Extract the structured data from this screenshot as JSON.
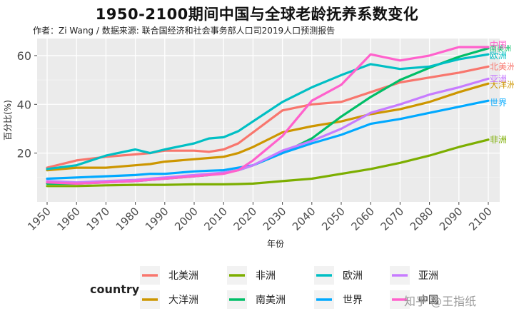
{
  "title": "1950-2100期间中国与全球老龄抚养系数变化",
  "subtitle": "作者：Zi Wang / 数据来源: 联合国经济和社会事务部人口司2019人口预测报告",
  "watermark": "知乎 @王指纸",
  "chart_data": {
    "type": "line",
    "title": "1950-2100期间中国与全球老龄抚养系数变化",
    "xlabel": "年份",
    "ylabel": "百分比(%)",
    "xlim": [
      1950,
      2100
    ],
    "ylim": [
      0,
      67
    ],
    "xticks": [
      1950,
      1960,
      1970,
      1980,
      1990,
      2000,
      2010,
      2020,
      2030,
      2040,
      2050,
      2060,
      2070,
      2080,
      2090,
      2100
    ],
    "yticks": [
      20,
      40,
      60
    ],
    "grid": true,
    "legend": {
      "title": "country",
      "position": "bottom"
    },
    "x": [
      1950,
      1960,
      1970,
      1980,
      1985,
      1990,
      2000,
      2005,
      2010,
      2015,
      2020,
      2030,
      2040,
      2050,
      2060,
      2070,
      2080,
      2090,
      2100
    ],
    "series": [
      {
        "name": "北美洲",
        "color": "#F8766D",
        "values": [
          14,
          17,
          18.5,
          19.5,
          20,
          21,
          21,
          20.5,
          21.5,
          24,
          28.5,
          37.5,
          40,
          41,
          45,
          49,
          51,
          53,
          55.5
        ]
      },
      {
        "name": "大洋洲",
        "color": "#CD9600",
        "values": [
          13,
          14,
          14,
          15,
          15.5,
          16.5,
          17.5,
          18,
          18.5,
          20,
          22.5,
          28.5,
          31,
          33,
          36,
          38,
          41,
          45,
          48.5
        ]
      },
      {
        "name": "非洲",
        "color": "#7CAE00",
        "values": [
          6.5,
          6.5,
          6.8,
          7,
          7,
          7,
          7.2,
          7.2,
          7.2,
          7.3,
          7.5,
          8.5,
          9.5,
          11.5,
          13.5,
          16,
          19,
          22.5,
          25.5
        ]
      },
      {
        "name": "南美洲",
        "color": "#00BE67",
        "values": [
          7.5,
          7.5,
          8,
          8.5,
          9,
          9.5,
          10.5,
          11,
          12,
          13,
          15,
          20,
          26,
          35,
          43,
          50,
          55,
          59.5,
          63
        ]
      },
      {
        "name": "欧洲",
        "color": "#00BFC4",
        "values": [
          13.5,
          15,
          19,
          21.5,
          20,
          21.5,
          24,
          26,
          26.5,
          29,
          33,
          41,
          47,
          52,
          56.5,
          54.5,
          55.5,
          58.5,
          60.5
        ]
      },
      {
        "name": "世界",
        "color": "#00A9FF",
        "values": [
          9.5,
          10,
          10.5,
          11,
          11.5,
          11.5,
          12.5,
          12.8,
          13,
          14,
          15,
          20,
          24,
          27.5,
          32,
          34,
          36.5,
          39,
          41.5
        ]
      },
      {
        "name": "亚洲",
        "color": "#C77CFF",
        "values": [
          8.5,
          8,
          8.5,
          9,
          9.5,
          10,
          11,
          11.5,
          12,
          13,
          15,
          21,
          25,
          30,
          36.5,
          40,
          44,
          47,
          50.5
        ]
      },
      {
        "name": "中国",
        "color": "#FF61CC",
        "values": [
          8,
          7.5,
          8,
          8.5,
          9,
          9.5,
          10.5,
          11,
          11.5,
          13,
          17,
          27,
          41.5,
          48,
          60.5,
          58,
          60,
          63.5,
          63.5
        ]
      }
    ]
  }
}
